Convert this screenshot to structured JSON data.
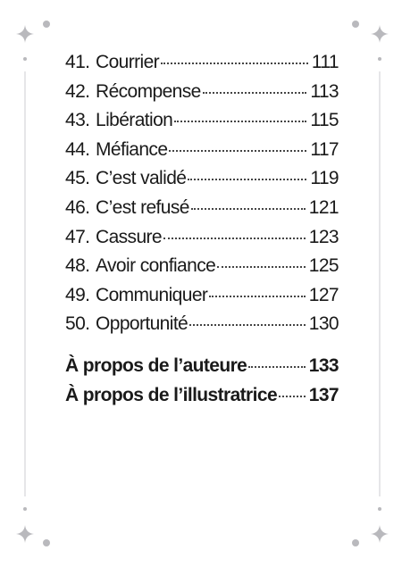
{
  "entries": [
    {
      "number": "41.",
      "title": "Courrier",
      "page": 111
    },
    {
      "number": "42.",
      "title": "Récompense",
      "page": 113
    },
    {
      "number": "43.",
      "title": "Libération",
      "page": 115
    },
    {
      "number": "44.",
      "title": "Méfiance",
      "page": 117
    },
    {
      "number": "45.",
      "title": "C’est validé",
      "page": 119
    },
    {
      "number": "46.",
      "title": "C’est refusé",
      "page": 121
    },
    {
      "number": "47.",
      "title": "Cassure",
      "page": 123
    },
    {
      "number": "48.",
      "title": "Avoir confiance",
      "page": 125
    },
    {
      "number": "49.",
      "title": "Communiquer",
      "page": 127
    },
    {
      "number": "50.",
      "title": "Opportunité",
      "page": 130
    }
  ],
  "appendix": [
    {
      "title": "À propos de l’auteure",
      "page": 133
    },
    {
      "title": "À propos de l’illustratrice",
      "page": 137
    }
  ]
}
